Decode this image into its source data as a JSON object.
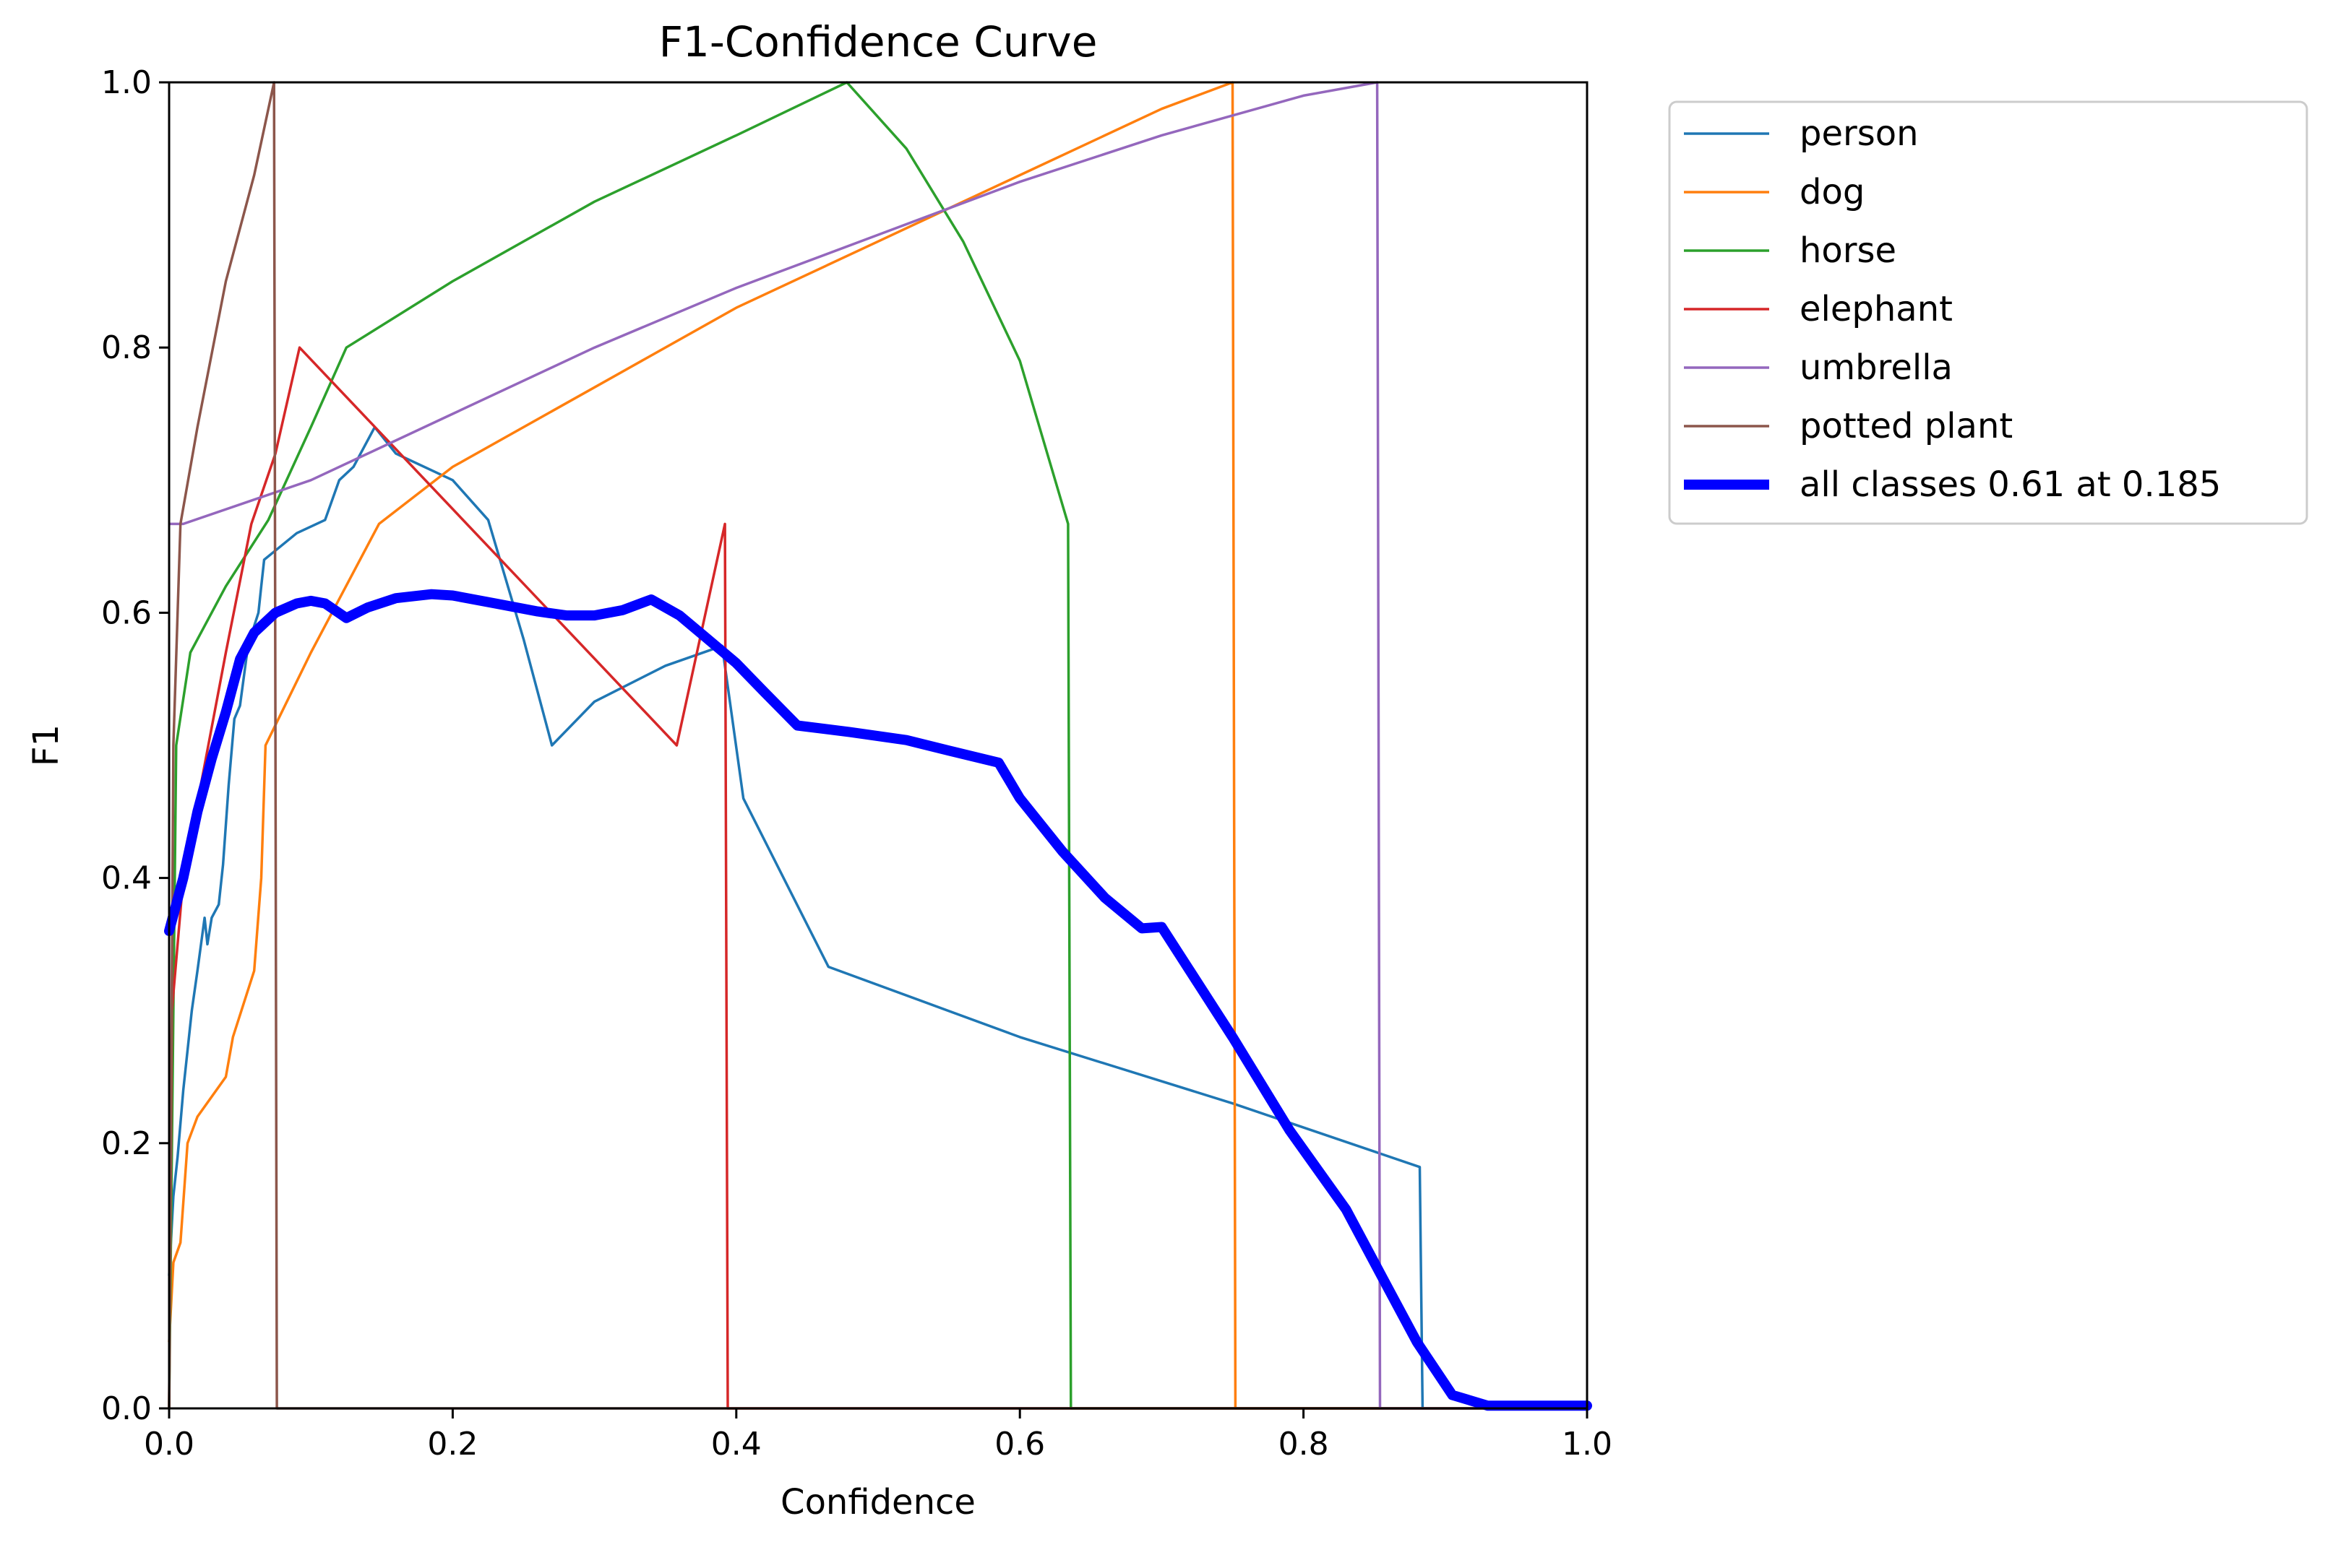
{
  "chart_data": {
    "type": "line",
    "title": "F1-Confidence Curve",
    "xlabel": "Confidence",
    "ylabel": "F1",
    "xlim": [
      0.0,
      1.0
    ],
    "ylim": [
      0.0,
      1.0
    ],
    "xticks": [
      "0.0",
      "0.2",
      "0.4",
      "0.6",
      "0.8",
      "1.0"
    ],
    "yticks": [
      "0.0",
      "0.2",
      "0.4",
      "0.6",
      "0.8",
      "1.0"
    ],
    "grid": false,
    "legend_position": "outside-upper-right",
    "series": [
      {
        "name": "person",
        "color": "#1f77b4",
        "emphasis": false,
        "points": [
          [
            0.0,
            0.1
          ],
          [
            0.003,
            0.16
          ],
          [
            0.006,
            0.19
          ],
          [
            0.01,
            0.24
          ],
          [
            0.013,
            0.27
          ],
          [
            0.016,
            0.3
          ],
          [
            0.02,
            0.33
          ],
          [
            0.025,
            0.37
          ],
          [
            0.027,
            0.35
          ],
          [
            0.03,
            0.37
          ],
          [
            0.035,
            0.38
          ],
          [
            0.038,
            0.41
          ],
          [
            0.042,
            0.47
          ],
          [
            0.046,
            0.52
          ],
          [
            0.05,
            0.53
          ],
          [
            0.055,
            0.57
          ],
          [
            0.06,
            0.59
          ],
          [
            0.063,
            0.6
          ],
          [
            0.065,
            0.62
          ],
          [
            0.067,
            0.64
          ],
          [
            0.09,
            0.66
          ],
          [
            0.11,
            0.67
          ],
          [
            0.12,
            0.7
          ],
          [
            0.13,
            0.71
          ],
          [
            0.145,
            0.74
          ],
          [
            0.16,
            0.72
          ],
          [
            0.2,
            0.7
          ],
          [
            0.225,
            0.67
          ],
          [
            0.25,
            0.58
          ],
          [
            0.27,
            0.5
          ],
          [
            0.3,
            0.533
          ],
          [
            0.35,
            0.56
          ],
          [
            0.39,
            0.575
          ],
          [
            0.405,
            0.46
          ],
          [
            0.465,
            0.333
          ],
          [
            0.6,
            0.28
          ],
          [
            0.75,
            0.23
          ],
          [
            0.882,
            0.182
          ],
          [
            0.884,
            0.0
          ],
          [
            1.0,
            0.0
          ]
        ]
      },
      {
        "name": "dog",
        "color": "#ff7f0e",
        "emphasis": false,
        "points": [
          [
            0.0,
            0.05
          ],
          [
            0.003,
            0.11
          ],
          [
            0.008,
            0.125
          ],
          [
            0.013,
            0.2
          ],
          [
            0.02,
            0.22
          ],
          [
            0.04,
            0.25
          ],
          [
            0.045,
            0.28
          ],
          [
            0.06,
            0.33
          ],
          [
            0.065,
            0.4
          ],
          [
            0.068,
            0.5
          ],
          [
            0.1,
            0.57
          ],
          [
            0.148,
            0.667
          ],
          [
            0.2,
            0.71
          ],
          [
            0.3,
            0.77
          ],
          [
            0.4,
            0.83
          ],
          [
            0.5,
            0.88
          ],
          [
            0.6,
            0.93
          ],
          [
            0.7,
            0.98
          ],
          [
            0.75,
            1.0
          ],
          [
            0.752,
            0.0
          ],
          [
            1.0,
            0.0
          ]
        ]
      },
      {
        "name": "horse",
        "color": "#2ca02c",
        "emphasis": false,
        "points": [
          [
            0.0,
            0.0
          ],
          [
            0.005,
            0.5
          ],
          [
            0.015,
            0.57
          ],
          [
            0.04,
            0.62
          ],
          [
            0.07,
            0.67
          ],
          [
            0.1,
            0.74
          ],
          [
            0.125,
            0.8
          ],
          [
            0.2,
            0.85
          ],
          [
            0.3,
            0.91
          ],
          [
            0.4,
            0.96
          ],
          [
            0.478,
            1.0
          ],
          [
            0.52,
            0.95
          ],
          [
            0.56,
            0.88
          ],
          [
            0.6,
            0.79
          ],
          [
            0.634,
            0.667
          ],
          [
            0.636,
            0.0
          ],
          [
            1.0,
            0.0
          ]
        ]
      },
      {
        "name": "elephant",
        "color": "#d62728",
        "emphasis": false,
        "points": [
          [
            0.0,
            0.0
          ],
          [
            0.002,
            0.3
          ],
          [
            0.01,
            0.4
          ],
          [
            0.04,
            0.57
          ],
          [
            0.058,
            0.667
          ],
          [
            0.075,
            0.72
          ],
          [
            0.092,
            0.8
          ],
          [
            0.358,
            0.5
          ],
          [
            0.392,
            0.667
          ],
          [
            0.394,
            0.0
          ],
          [
            1.0,
            0.0
          ]
        ]
      },
      {
        "name": "umbrella",
        "color": "#9467bd",
        "emphasis": false,
        "points": [
          [
            0.0,
            0.667
          ],
          [
            0.01,
            0.667
          ],
          [
            0.1,
            0.7
          ],
          [
            0.2,
            0.75
          ],
          [
            0.3,
            0.8
          ],
          [
            0.4,
            0.845
          ],
          [
            0.5,
            0.885
          ],
          [
            0.6,
            0.925
          ],
          [
            0.7,
            0.96
          ],
          [
            0.8,
            0.99
          ],
          [
            0.852,
            1.0
          ],
          [
            0.854,
            0.0
          ],
          [
            1.0,
            0.0
          ]
        ]
      },
      {
        "name": "potted plant",
        "color": "#8c564b",
        "emphasis": false,
        "points": [
          [
            0.0,
            0.0
          ],
          [
            0.003,
            0.5
          ],
          [
            0.008,
            0.667
          ],
          [
            0.02,
            0.74
          ],
          [
            0.04,
            0.85
          ],
          [
            0.06,
            0.93
          ],
          [
            0.074,
            1.0
          ],
          [
            0.076,
            0.0
          ],
          [
            1.0,
            0.0
          ]
        ]
      },
      {
        "name": "all classes 0.61 at 0.185",
        "color": "#0000ff",
        "emphasis": true,
        "points": [
          [
            0.0,
            0.36
          ],
          [
            0.01,
            0.4
          ],
          [
            0.02,
            0.45
          ],
          [
            0.03,
            0.49
          ],
          [
            0.04,
            0.525
          ],
          [
            0.05,
            0.565
          ],
          [
            0.06,
            0.585
          ],
          [
            0.075,
            0.6
          ],
          [
            0.09,
            0.607
          ],
          [
            0.1,
            0.609
          ],
          [
            0.11,
            0.607
          ],
          [
            0.125,
            0.596
          ],
          [
            0.14,
            0.604
          ],
          [
            0.16,
            0.611
          ],
          [
            0.185,
            0.614
          ],
          [
            0.2,
            0.613
          ],
          [
            0.23,
            0.607
          ],
          [
            0.26,
            0.601
          ],
          [
            0.28,
            0.598
          ],
          [
            0.3,
            0.598
          ],
          [
            0.32,
            0.602
          ],
          [
            0.34,
            0.61
          ],
          [
            0.36,
            0.598
          ],
          [
            0.38,
            0.58
          ],
          [
            0.4,
            0.562
          ],
          [
            0.42,
            0.54
          ],
          [
            0.443,
            0.515
          ],
          [
            0.48,
            0.51
          ],
          [
            0.52,
            0.504
          ],
          [
            0.55,
            0.496
          ],
          [
            0.585,
            0.487
          ],
          [
            0.6,
            0.46
          ],
          [
            0.63,
            0.42
          ],
          [
            0.66,
            0.385
          ],
          [
            0.686,
            0.362
          ],
          [
            0.7,
            0.363
          ],
          [
            0.75,
            0.28
          ],
          [
            0.79,
            0.21
          ],
          [
            0.83,
            0.15
          ],
          [
            0.86,
            0.09
          ],
          [
            0.88,
            0.05
          ],
          [
            0.905,
            0.01
          ],
          [
            0.93,
            0.002
          ],
          [
            1.0,
            0.002
          ]
        ]
      }
    ]
  }
}
